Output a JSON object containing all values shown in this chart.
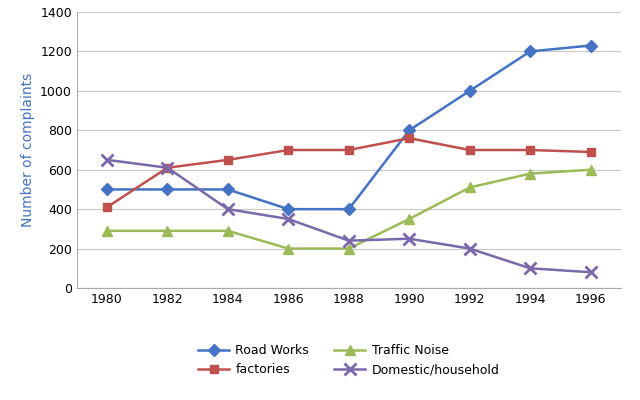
{
  "years": [
    1980,
    1982,
    1984,
    1986,
    1988,
    1990,
    1992,
    1994,
    1996
  ],
  "road_works": [
    500,
    500,
    500,
    400,
    400,
    800,
    1000,
    1200,
    1230
  ],
  "factories": [
    410,
    610,
    650,
    700,
    700,
    760,
    700,
    700,
    690
  ],
  "traffic_noise": [
    290,
    290,
    290,
    200,
    200,
    350,
    510,
    580,
    600
  ],
  "domestic_household": [
    650,
    610,
    400,
    350,
    240,
    250,
    200,
    100,
    80
  ],
  "series_labels": [
    "Road Works",
    "factories",
    "Traffic Noise",
    "Domestic/household"
  ],
  "colors": {
    "road_works": "#4472C4",
    "factories": "#C0504D",
    "traffic_noise": "#9BBB59",
    "domestic_household": "#7B68AA"
  },
  "markers": {
    "road_works": "D",
    "factories": "s",
    "traffic_noise": "^",
    "domestic_household": "x"
  },
  "ylabel": "Number of complaints",
  "ylabel_color": "#4472C4",
  "ylim": [
    0,
    1400
  ],
  "yticks": [
    0,
    200,
    400,
    600,
    800,
    1000,
    1200,
    1400
  ],
  "xlim": [
    1979,
    1997
  ],
  "xticks": [
    1980,
    1982,
    1984,
    1986,
    1988,
    1990,
    1992,
    1994,
    1996
  ],
  "background_color": "#FFFFFF",
  "grid_color": "#C8C8C8",
  "legend_ncol": 2
}
